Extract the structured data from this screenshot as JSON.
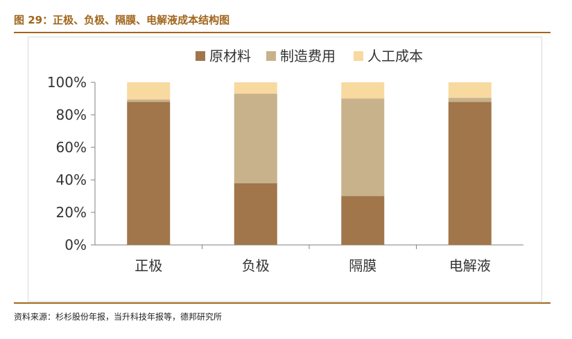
{
  "header": {
    "title": "图 29：正极、负极、隔膜、电解液成本结构图"
  },
  "footer": {
    "source": "资料来源：杉杉股份年报，当升科技年报等，德邦研究所"
  },
  "chart_data": {
    "type": "bar",
    "stacked": true,
    "title": "",
    "xlabel": "",
    "ylabel": "",
    "ylim": [
      0,
      100
    ],
    "yticks": [
      "0%",
      "20%",
      "40%",
      "60%",
      "80%",
      "100%"
    ],
    "categories": [
      "正极",
      "负极",
      "隔膜",
      "电解液"
    ],
    "series": [
      {
        "name": "原材料",
        "color": "#a0764a",
        "values": [
          88,
          38,
          30,
          88
        ]
      },
      {
        "name": "制造费用",
        "color": "#c8b28c",
        "values": [
          1.5,
          55,
          60,
          2.5
        ]
      },
      {
        "name": "人工成本",
        "color": "#f8d9a0",
        "values": [
          10.5,
          7,
          10,
          9.5
        ]
      }
    ],
    "legend_position": "top",
    "grid": false
  }
}
